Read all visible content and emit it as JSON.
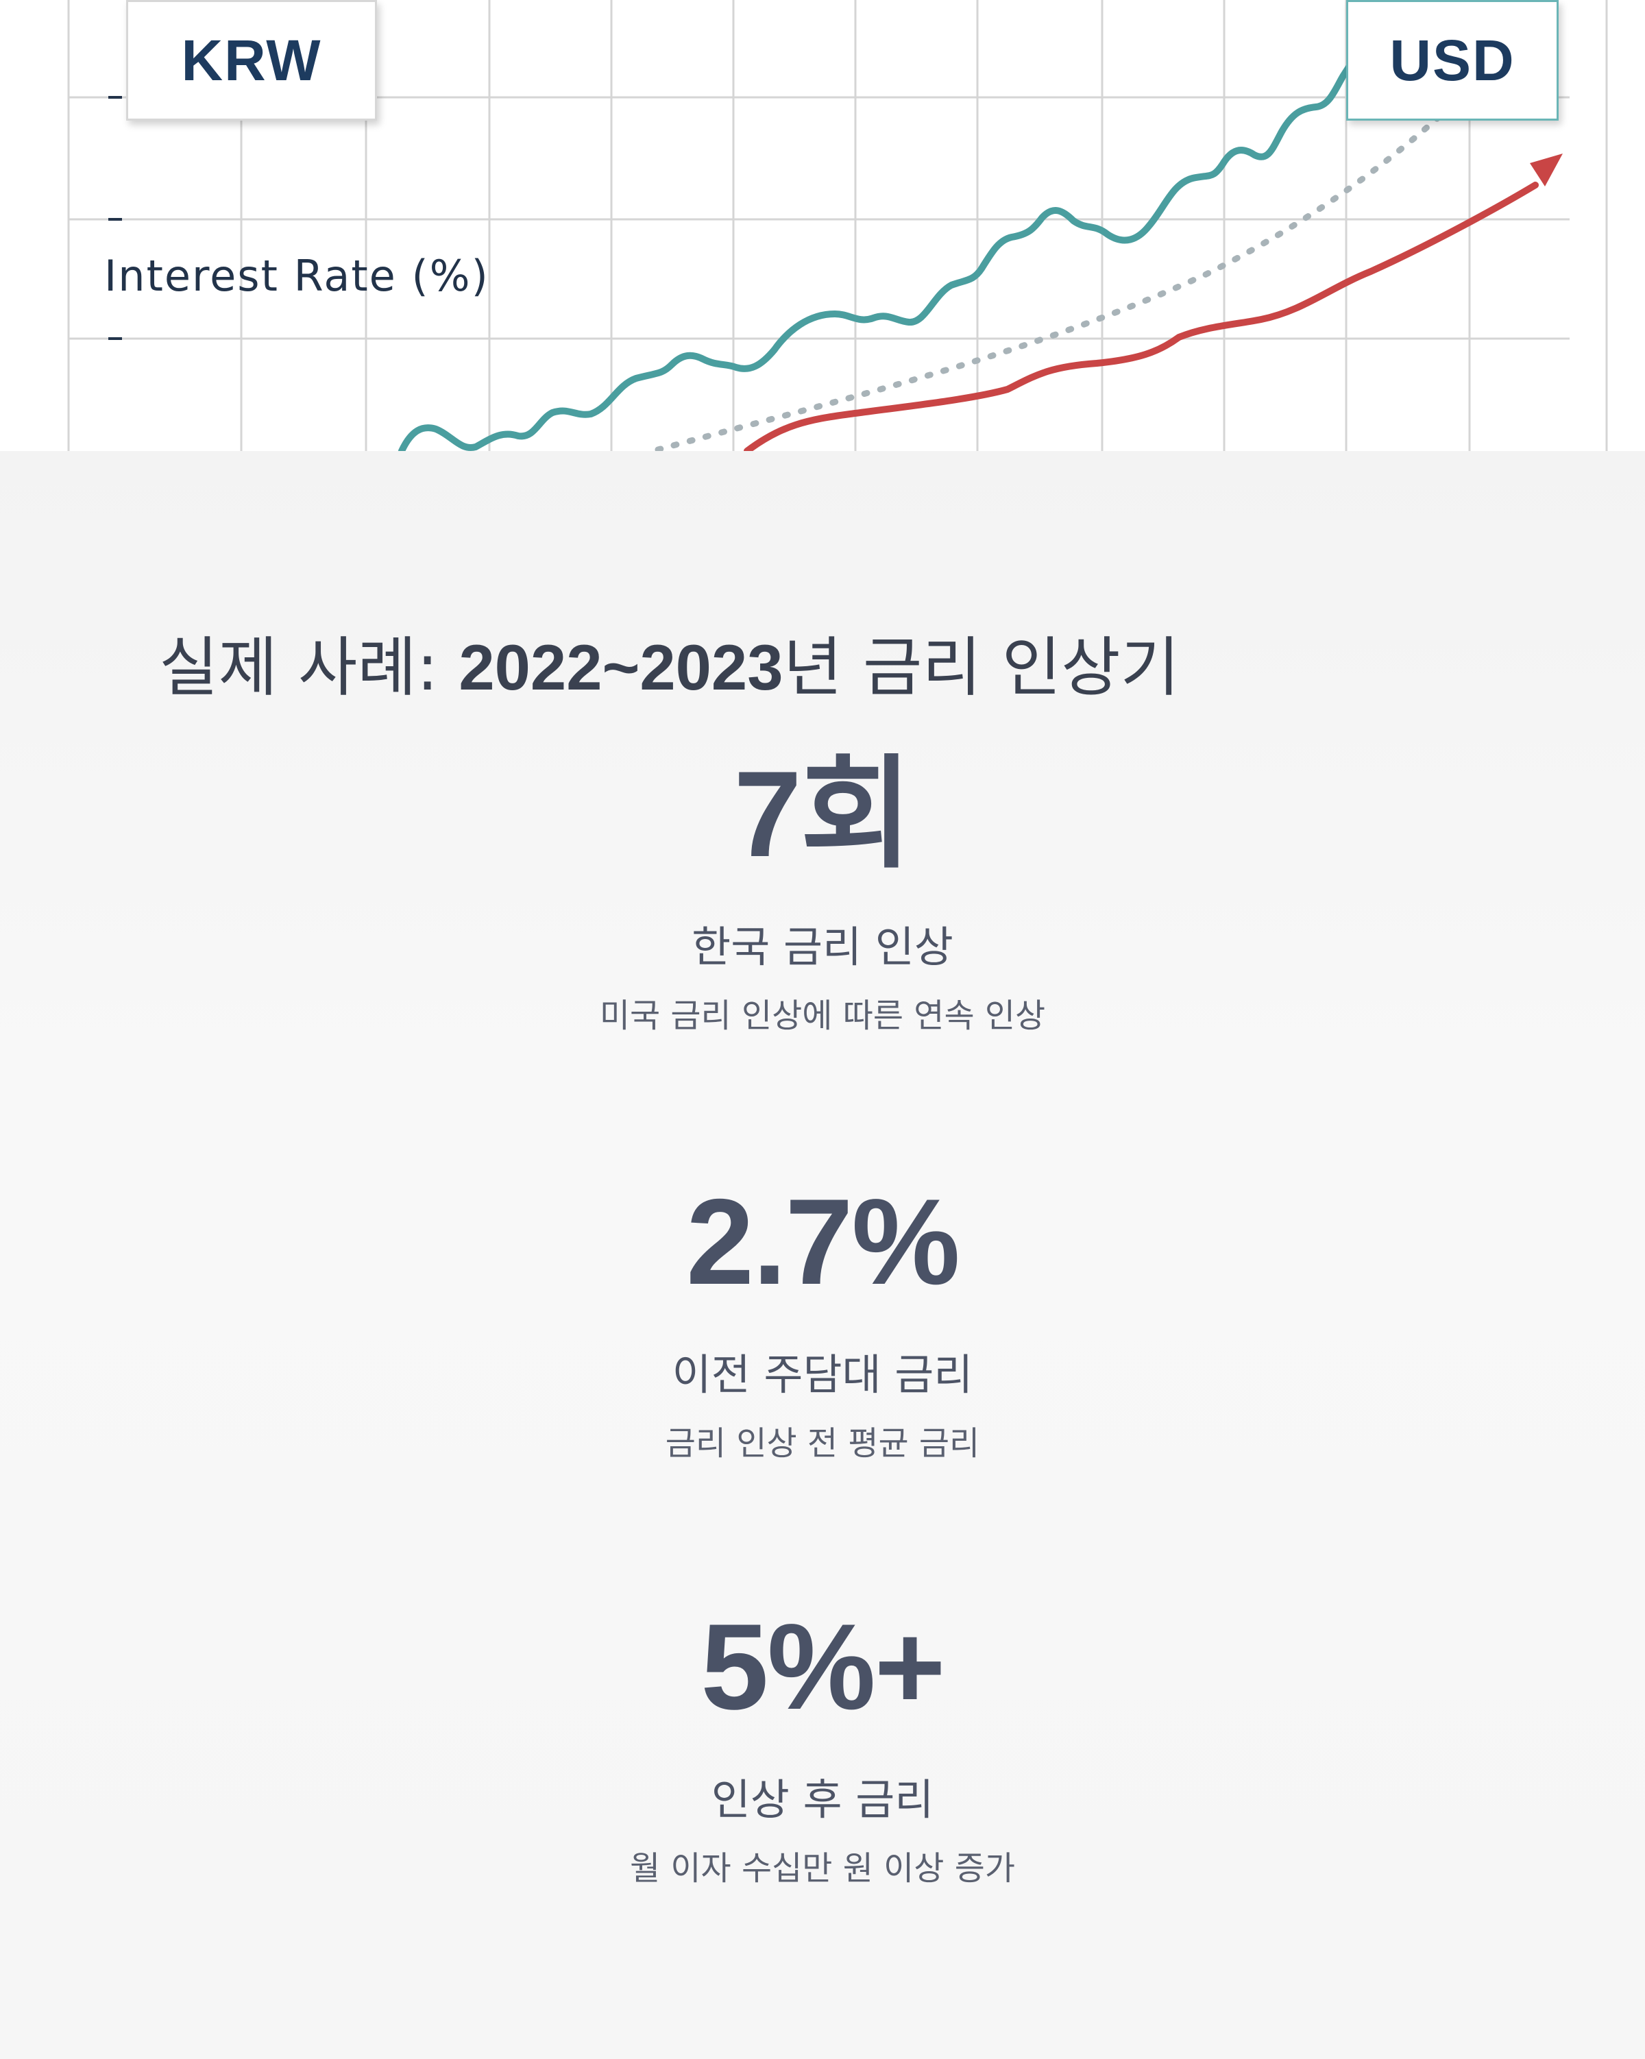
{
  "hero": {
    "label_krw": "KRW",
    "label_usd": "USD",
    "axis_label": "Interest Rate (%)",
    "colors": {
      "krw_line": "#4a9e9f",
      "usd_line": "#c94545",
      "trend_line": "#a8b3b8",
      "grid": "#d5d5d5"
    }
  },
  "case": {
    "title_prefix": "실제 사례: ",
    "title_years": "2022~2023",
    "title_suffix": "년 금리 인상기"
  },
  "stats": [
    {
      "value": "7회",
      "label": "한국 금리 인상",
      "description": "미국 금리 인상에 따른 연속 인상"
    },
    {
      "value": "2.7%",
      "label": "이전 주담대 금리",
      "description": "금리 인상 전 평균 금리"
    },
    {
      "value": "5%+",
      "label": "인상 후 금리",
      "description": "월 이자 수십만 원 이상 증가"
    }
  ]
}
